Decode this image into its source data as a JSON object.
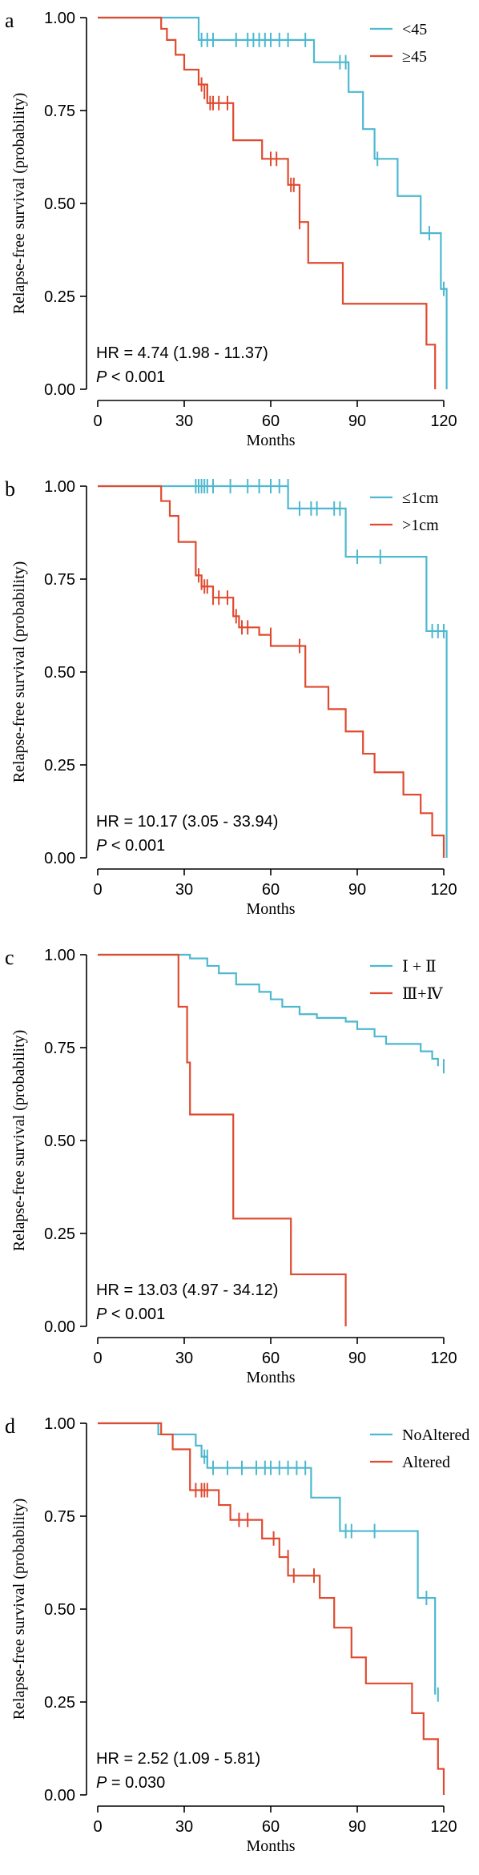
{
  "colors": {
    "teal": "#4db8cf",
    "red": "#e04a2f",
    "axis": "#000000"
  },
  "chart_data": [
    {
      "panel_label": "a",
      "type": "kaplan-meier",
      "ylabel": "Relapse-free survival (probability)",
      "xlabel": "Months",
      "xlim": [
        0,
        120
      ],
      "ylim": [
        0,
        1
      ],
      "xticks": [
        "0",
        "30",
        "60",
        "90",
        "120"
      ],
      "yticks": [
        "0.00",
        "0.25",
        "0.50",
        "0.75",
        "1.00"
      ],
      "legend_position": "top-right",
      "hr_text": "HR = 4.74 (1.98 -  11.37)",
      "p_label": "P",
      "p_value": " < 0.001",
      "series": [
        {
          "name": "<45",
          "color": "#4db8cf",
          "steps": [
            [
              0,
              1
            ],
            [
              35,
              0.94
            ],
            [
              75,
              0.88
            ],
            [
              87,
              0.8
            ],
            [
              92,
              0.7
            ],
            [
              96,
              0.62
            ],
            [
              104,
              0.52
            ],
            [
              112,
              0.42
            ],
            [
              119,
              0.27
            ],
            [
              121,
              0
            ]
          ],
          "censors": [
            [
              36,
              0.94
            ],
            [
              38,
              0.94
            ],
            [
              40,
              0.94
            ],
            [
              48,
              0.94
            ],
            [
              52,
              0.94
            ],
            [
              54,
              0.94
            ],
            [
              56,
              0.94
            ],
            [
              58,
              0.94
            ],
            [
              60,
              0.94
            ],
            [
              63,
              0.94
            ],
            [
              66,
              0.94
            ],
            [
              72,
              0.94
            ],
            [
              84,
              0.88
            ],
            [
              86,
              0.88
            ],
            [
              97,
              0.62
            ],
            [
              115,
              0.42
            ],
            [
              120,
              0.27
            ]
          ]
        },
        {
          "name": "≥45",
          "color": "#e04a2f",
          "steps": [
            [
              0,
              1
            ],
            [
              22,
              0.97
            ],
            [
              24,
              0.94
            ],
            [
              27,
              0.9
            ],
            [
              30,
              0.86
            ],
            [
              35,
              0.82
            ],
            [
              38,
              0.77
            ],
            [
              47,
              0.67
            ],
            [
              57,
              0.62
            ],
            [
              66,
              0.55
            ],
            [
              70,
              0.45
            ],
            [
              73,
              0.34
            ],
            [
              85,
              0.23
            ],
            [
              114,
              0.12
            ],
            [
              117,
              0
            ]
          ],
          "censors": [
            [
              36,
              0.82
            ],
            [
              37,
              0.8
            ],
            [
              38,
              0.8
            ],
            [
              39,
              0.77
            ],
            [
              40,
              0.77
            ],
            [
              42,
              0.77
            ],
            [
              45,
              0.77
            ],
            [
              60,
              0.62
            ],
            [
              62,
              0.62
            ],
            [
              67,
              0.55
            ],
            [
              68,
              0.55
            ],
            [
              70,
              0.45
            ]
          ]
        }
      ]
    },
    {
      "panel_label": "b",
      "type": "kaplan-meier",
      "ylabel": "Relapse-free survival (probability)",
      "xlabel": "Months",
      "xlim": [
        0,
        120
      ],
      "ylim": [
        0,
        1
      ],
      "xticks": [
        "0",
        "30",
        "60",
        "90",
        "120"
      ],
      "yticks": [
        "0.00",
        "0.25",
        "0.50",
        "0.75",
        "1.00"
      ],
      "legend_position": "top-right",
      "hr_text": "HR = 10.17 (3.05 -  33.94)",
      "p_label": "P",
      "p_value": " < 0.001",
      "series": [
        {
          "name": "≤1cm",
          "color": "#4db8cf",
          "steps": [
            [
              0,
              1
            ],
            [
              66,
              0.94
            ],
            [
              86,
              0.81
            ],
            [
              114,
              0.61
            ],
            [
              121,
              0
            ]
          ],
          "censors": [
            [
              34,
              1
            ],
            [
              35,
              1
            ],
            [
              36,
              1
            ],
            [
              37,
              1
            ],
            [
              38,
              1
            ],
            [
              40,
              1
            ],
            [
              46,
              1
            ],
            [
              52,
              1
            ],
            [
              56,
              1
            ],
            [
              60,
              1
            ],
            [
              63,
              1
            ],
            [
              66,
              1
            ],
            [
              70,
              0.94
            ],
            [
              74,
              0.94
            ],
            [
              76,
              0.94
            ],
            [
              82,
              0.94
            ],
            [
              84,
              0.94
            ],
            [
              90,
              0.81
            ],
            [
              98,
              0.81
            ],
            [
              116,
              0.61
            ],
            [
              118,
              0.61
            ],
            [
              120,
              0.61
            ]
          ]
        },
        {
          "name": ">1cm",
          "color": "#e04a2f",
          "steps": [
            [
              0,
              1
            ],
            [
              22,
              0.96
            ],
            [
              25,
              0.92
            ],
            [
              28,
              0.85
            ],
            [
              34,
              0.76
            ],
            [
              36,
              0.73
            ],
            [
              40,
              0.7
            ],
            [
              47,
              0.65
            ],
            [
              49,
              0.62
            ],
            [
              56,
              0.6
            ],
            [
              60,
              0.57
            ],
            [
              72,
              0.46
            ],
            [
              80,
              0.4
            ],
            [
              86,
              0.34
            ],
            [
              92,
              0.28
            ],
            [
              96,
              0.23
            ],
            [
              106,
              0.17
            ],
            [
              112,
              0.12
            ],
            [
              116,
              0.06
            ],
            [
              120,
              0
            ]
          ],
          "censors": [
            [
              35,
              0.76
            ],
            [
              36,
              0.74
            ],
            [
              37,
              0.73
            ],
            [
              38,
              0.73
            ],
            [
              40,
              0.7
            ],
            [
              42,
              0.7
            ],
            [
              45,
              0.7
            ],
            [
              48,
              0.65
            ],
            [
              50,
              0.62
            ],
            [
              52,
              0.62
            ],
            [
              60,
              0.6
            ],
            [
              70,
              0.57
            ]
          ]
        }
      ]
    },
    {
      "panel_label": "c",
      "type": "kaplan-meier",
      "ylabel": "Relapse-free survival (probability)",
      "xlabel": "Months",
      "xlim": [
        0,
        120
      ],
      "ylim": [
        0,
        1
      ],
      "xticks": [
        "0",
        "30",
        "60",
        "90",
        "120"
      ],
      "yticks": [
        "0.00",
        "0.25",
        "0.50",
        "0.75",
        "1.00"
      ],
      "legend_position": "top-right",
      "hr_text": "HR = 13.03 (4.97 -  34.12)",
      "p_label": "P",
      "p_value": " < 0.001",
      "series": [
        {
          "name": "Ⅰ + Ⅱ",
          "color": "#4db8cf",
          "steps": [
            [
              0,
              1
            ],
            [
              32,
              0.99
            ],
            [
              38,
              0.97
            ],
            [
              42,
              0.95
            ],
            [
              48,
              0.92
            ],
            [
              56,
              0.9
            ],
            [
              60,
              0.88
            ],
            [
              64,
              0.86
            ],
            [
              70,
              0.84
            ],
            [
              76,
              0.83
            ],
            [
              86,
              0.82
            ],
            [
              90,
              0.8
            ],
            [
              96,
              0.78
            ],
            [
              100,
              0.76
            ],
            [
              112,
              0.74
            ],
            [
              116,
              0.72
            ],
            [
              118,
              0.7
            ]
          ],
          "censors": [
            [
              120,
              0.7
            ]
          ]
        },
        {
          "name": "Ⅲ+Ⅳ",
          "color": "#e04a2f",
          "steps": [
            [
              0,
              1
            ],
            [
              28,
              0.86
            ],
            [
              31,
              0.71
            ],
            [
              32,
              0.57
            ],
            [
              47,
              0.29
            ],
            [
              67,
              0.14
            ],
            [
              86,
              0
            ]
          ],
          "censors": []
        }
      ]
    },
    {
      "panel_label": "d",
      "type": "kaplan-meier",
      "ylabel": "Relapse-free survival (probability)",
      "xlabel": "Months",
      "xlim": [
        0,
        120
      ],
      "ylim": [
        0,
        1
      ],
      "xticks": [
        "0",
        "30",
        "60",
        "90",
        "120"
      ],
      "yticks": [
        "0.00",
        "0.25",
        "0.50",
        "0.75",
        "1.00"
      ],
      "legend_position": "top-right",
      "hr_text": "HR = 2.52 (1.09 -  5.81)",
      "p_label": "P",
      "p_value": " = 0.030",
      "series": [
        {
          "name": "NoAltered",
          "color": "#4db8cf",
          "steps": [
            [
              0,
              1
            ],
            [
              21,
              0.97
            ],
            [
              34,
              0.94
            ],
            [
              36,
              0.91
            ],
            [
              38,
              0.88
            ],
            [
              74,
              0.8
            ],
            [
              84,
              0.71
            ],
            [
              111,
              0.53
            ],
            [
              117,
              0.27
            ]
          ],
          "censors": [
            [
              37,
              0.91
            ],
            [
              38,
              0.91
            ],
            [
              40,
              0.88
            ],
            [
              45,
              0.88
            ],
            [
              50,
              0.88
            ],
            [
              55,
              0.88
            ],
            [
              58,
              0.88
            ],
            [
              60,
              0.88
            ],
            [
              63,
              0.88
            ],
            [
              66,
              0.88
            ],
            [
              69,
              0.88
            ],
            [
              72,
              0.88
            ],
            [
              86,
              0.71
            ],
            [
              88,
              0.71
            ],
            [
              96,
              0.71
            ],
            [
              114,
              0.53
            ],
            [
              118,
              0.27
            ]
          ]
        },
        {
          "name": "Altered",
          "color": "#e04a2f",
          "steps": [
            [
              0,
              1
            ],
            [
              22,
              0.97
            ],
            [
              26,
              0.93
            ],
            [
              32,
              0.82
            ],
            [
              42,
              0.78
            ],
            [
              46,
              0.74
            ],
            [
              57,
              0.69
            ],
            [
              63,
              0.64
            ],
            [
              66,
              0.59
            ],
            [
              77,
              0.53
            ],
            [
              82,
              0.45
            ],
            [
              88,
              0.37
            ],
            [
              93,
              0.3
            ],
            [
              109,
              0.22
            ],
            [
              113,
              0.15
            ],
            [
              118,
              0.07
            ],
            [
              120,
              0
            ]
          ],
          "censors": [
            [
              34,
              0.82
            ],
            [
              36,
              0.82
            ],
            [
              37,
              0.82
            ],
            [
              38,
              0.82
            ],
            [
              49,
              0.74
            ],
            [
              52,
              0.74
            ],
            [
              61,
              0.69
            ],
            [
              66,
              0.64
            ],
            [
              68,
              0.59
            ],
            [
              75,
              0.59
            ]
          ]
        }
      ]
    }
  ]
}
